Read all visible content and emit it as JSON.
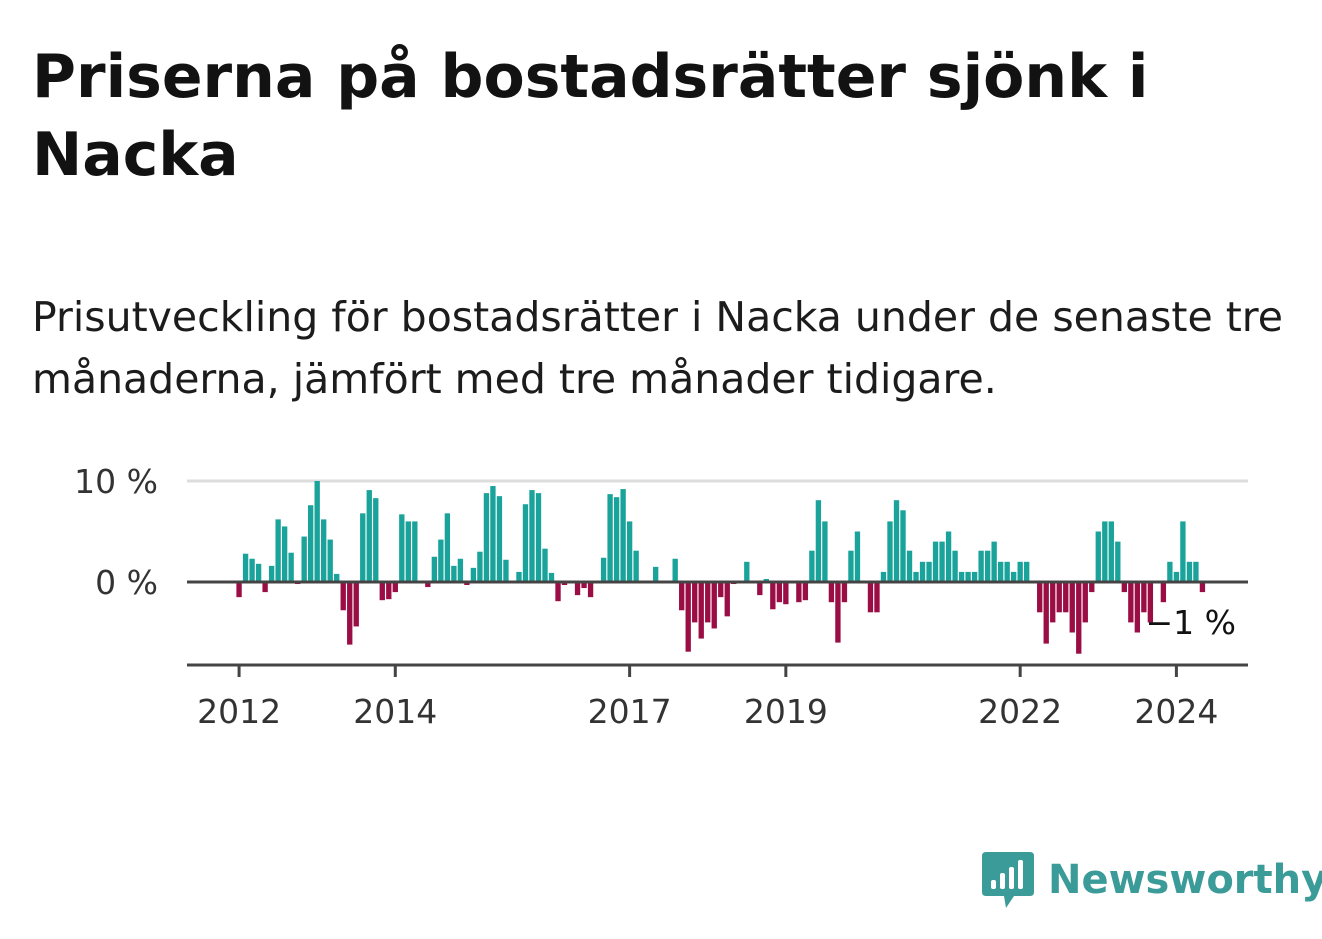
{
  "title": "Priserna på bostadsrätter sjönk i Nacka",
  "subtitle": "Prisutveckling för bostadsrätter i Nacka under de senaste tre månaderna, jämfört med tre månader tidigare.",
  "brand": {
    "name": "Newsworthy",
    "icon": "newsworthy-logo-icon",
    "color": "#3b9b98"
  },
  "colors": {
    "positive": "#1aa39b",
    "negative": "#9b0d45",
    "gridline": "#dddddd",
    "axis": "#444444"
  },
  "chart_data": {
    "type": "bar",
    "title": "Priserna på bostadsrätter sjönk i Nacka",
    "xlabel": "",
    "ylabel": "",
    "ylim": [
      -8.5,
      10
    ],
    "yticks": [
      0,
      10
    ],
    "ytick_labels": [
      "0 %",
      "10 %"
    ],
    "xticks": [
      2012,
      2014,
      2017,
      2019,
      2022,
      2024
    ],
    "x_start": "2011-05",
    "x_end": "2024-12",
    "series_start": "2012-01",
    "last_value_label": "−1 %",
    "values": [
      -1.5,
      2.8,
      2.3,
      1.8,
      -1.0,
      1.6,
      6.2,
      5.5,
      2.9,
      -0.2,
      4.5,
      7.6,
      10.0,
      6.2,
      4.2,
      0.8,
      -2.8,
      -6.2,
      -4.4,
      6.8,
      9.1,
      8.3,
      -1.8,
      -1.7,
      -1.0,
      6.7,
      6.0,
      6.0,
      0.0,
      -0.5,
      2.5,
      4.2,
      6.8,
      1.6,
      2.3,
      -0.3,
      1.4,
      3.0,
      8.8,
      9.5,
      8.5,
      2.2,
      0.0,
      1.0,
      7.7,
      9.1,
      8.8,
      3.3,
      0.9,
      -1.9,
      -0.3,
      0.0,
      -1.3,
      -0.6,
      -1.5,
      0.0,
      2.4,
      8.7,
      8.4,
      9.2,
      6.0,
      3.1,
      0.0,
      0.0,
      1.5,
      0.0,
      0.0,
      2.3,
      -2.8,
      -6.9,
      -4.0,
      -5.6,
      -4.0,
      -4.6,
      -1.5,
      -3.4,
      -0.2,
      0.0,
      2.0,
      0.0,
      -1.3,
      0.3,
      -2.7,
      -2.0,
      -2.2,
      0.0,
      -2.0,
      -1.8,
      3.1,
      8.1,
      6.0,
      -2.0,
      -6.0,
      -2.0,
      3.1,
      5.0,
      0.0,
      -3.0,
      -3.0,
      1.0,
      6.0,
      8.1,
      7.1,
      3.1,
      1.0,
      2.0,
      2.0,
      4.0,
      4.0,
      5.0,
      3.1,
      1.0,
      1.0,
      1.0,
      3.1,
      3.1,
      4.0,
      2.0,
      2.0,
      1.0,
      2.0,
      2.0,
      0.0,
      -3.0,
      -6.1,
      -4.0,
      -3.0,
      -3.0,
      -5.0,
      -7.1,
      -4.0,
      -1.0,
      5.0,
      6.0,
      6.0,
      4.0,
      -1.0,
      -4.0,
      -5.0,
      -3.0,
      -4.0,
      0.0,
      -2.0,
      2.0,
      1.0,
      6.0,
      2.0,
      2.0,
      -1.0
    ]
  }
}
